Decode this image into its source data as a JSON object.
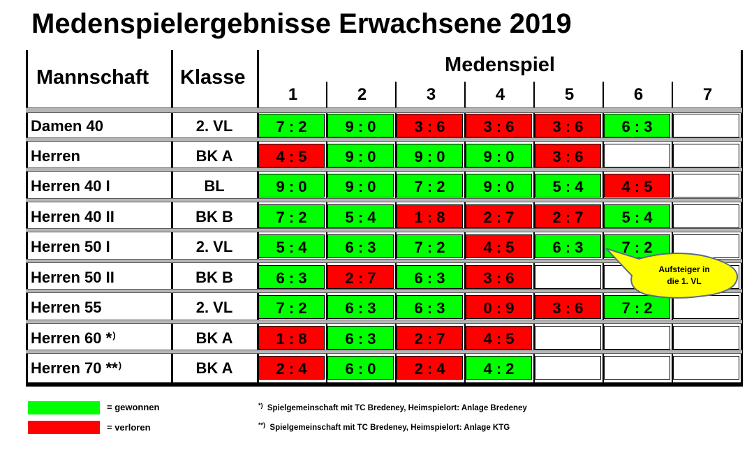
{
  "title": "Medenspielergebnisse Erwachsene 2019",
  "header": {
    "team_label": "Mannschaft",
    "class_label": "Klasse",
    "games_label": "Medenspiel",
    "games": [
      "1",
      "2",
      "3",
      "4",
      "5",
      "6",
      "7"
    ]
  },
  "rows": [
    {
      "team": "Damen 40",
      "mark": "",
      "klasse": "2. VL",
      "results": [
        {
          "score": "7 : 2",
          "status": "won"
        },
        {
          "score": "9 : 0",
          "status": "won"
        },
        {
          "score": "3 : 6",
          "status": "lost"
        },
        {
          "score": "3 : 6",
          "status": "lost"
        },
        {
          "score": "3 : 6",
          "status": "lost"
        },
        {
          "score": "6 : 3",
          "status": "won"
        },
        {
          "score": "",
          "status": "none"
        }
      ]
    },
    {
      "team": "Herren",
      "mark": "",
      "klasse": "BK A",
      "results": [
        {
          "score": "4 : 5",
          "status": "lost"
        },
        {
          "score": "9 : 0",
          "status": "won"
        },
        {
          "score": "9 : 0",
          "status": "won"
        },
        {
          "score": "9 : 0",
          "status": "won"
        },
        {
          "score": "3 : 6",
          "status": "lost"
        },
        {
          "score": "",
          "status": "none"
        },
        {
          "score": "",
          "status": "none"
        }
      ]
    },
    {
      "team": "Herren 40 I",
      "mark": "",
      "klasse": "BL",
      "results": [
        {
          "score": "9 : 0",
          "status": "won"
        },
        {
          "score": "9 : 0",
          "status": "won"
        },
        {
          "score": "7 : 2",
          "status": "won"
        },
        {
          "score": "9 : 0",
          "status": "won"
        },
        {
          "score": "5 : 4",
          "status": "won"
        },
        {
          "score": "4 : 5",
          "status": "lost"
        },
        {
          "score": "",
          "status": "none"
        }
      ]
    },
    {
      "team": "Herren 40 II",
      "mark": "",
      "klasse": "BK B",
      "results": [
        {
          "score": "7 : 2",
          "status": "won"
        },
        {
          "score": "5 : 4",
          "status": "won"
        },
        {
          "score": "1 : 8",
          "status": "lost"
        },
        {
          "score": "2 : 7",
          "status": "lost"
        },
        {
          "score": "2 : 7",
          "status": "lost"
        },
        {
          "score": "5 : 4",
          "status": "won"
        },
        {
          "score": "",
          "status": "none"
        }
      ]
    },
    {
      "team": "Herren 50 I",
      "mark": "",
      "klasse": "2. VL",
      "results": [
        {
          "score": "5 : 4",
          "status": "won"
        },
        {
          "score": "6 : 3",
          "status": "won"
        },
        {
          "score": "7 : 2",
          "status": "won"
        },
        {
          "score": "4 : 5",
          "status": "lost"
        },
        {
          "score": "6 : 3",
          "status": "won"
        },
        {
          "score": "7 : 2",
          "status": "won"
        },
        {
          "score": "",
          "status": "none"
        }
      ]
    },
    {
      "team": "Herren 50 II",
      "mark": "",
      "klasse": "BK B",
      "results": [
        {
          "score": "6 : 3",
          "status": "won"
        },
        {
          "score": "2 : 7",
          "status": "lost"
        },
        {
          "score": "6 : 3",
          "status": "won"
        },
        {
          "score": "3 : 6",
          "status": "lost"
        },
        {
          "score": "",
          "status": "none"
        },
        {
          "score": "",
          "status": "none"
        },
        {
          "score": "",
          "status": "none"
        }
      ]
    },
    {
      "team": "Herren 55",
      "mark": "",
      "klasse": "2. VL",
      "results": [
        {
          "score": "7 : 2",
          "status": "won"
        },
        {
          "score": "6 : 3",
          "status": "won"
        },
        {
          "score": "6 : 3",
          "status": "won"
        },
        {
          "score": "0 : 9",
          "status": "lost"
        },
        {
          "score": "3 : 6",
          "status": "lost"
        },
        {
          "score": "7 : 2",
          "status": "won"
        },
        {
          "score": "",
          "status": "none"
        }
      ]
    },
    {
      "team": "Herren 60 *",
      "mark": ")",
      "klasse": "BK A",
      "results": [
        {
          "score": "1 : 8",
          "status": "lost"
        },
        {
          "score": "6 : 3",
          "status": "won"
        },
        {
          "score": "2 : 7",
          "status": "lost"
        },
        {
          "score": "4 : 5",
          "status": "lost"
        },
        {
          "score": "",
          "status": "none"
        },
        {
          "score": "",
          "status": "none"
        },
        {
          "score": "",
          "status": "none"
        }
      ]
    },
    {
      "team": "Herren 70 **",
      "mark": ")",
      "klasse": "BK A",
      "results": [
        {
          "score": "2 : 4",
          "status": "lost"
        },
        {
          "score": "6 : 0",
          "status": "won"
        },
        {
          "score": "2 : 4",
          "status": "lost"
        },
        {
          "score": "4 : 2",
          "status": "won"
        },
        {
          "score": "",
          "status": "none"
        },
        {
          "score": "",
          "status": "none"
        },
        {
          "score": "",
          "status": "none"
        }
      ]
    }
  ],
  "legend": {
    "won": {
      "label": "= gewonnen",
      "color": "#00ff00"
    },
    "lost": {
      "label": "= verloren",
      "color": "#ff0000"
    }
  },
  "notes": [
    {
      "mark": "*)",
      "text": "Spielgemeinschaft mit TC Bredeney, Heimspielort: Anlage Bredeney"
    },
    {
      "mark": "**)",
      "text": "Spielgemeinschaft mit TC Bredeney, Heimspielort: Anlage KTG"
    }
  ],
  "callout": {
    "line1": "Aufsteiger in",
    "line2": "die 1. VL",
    "color": "#ffff00"
  }
}
